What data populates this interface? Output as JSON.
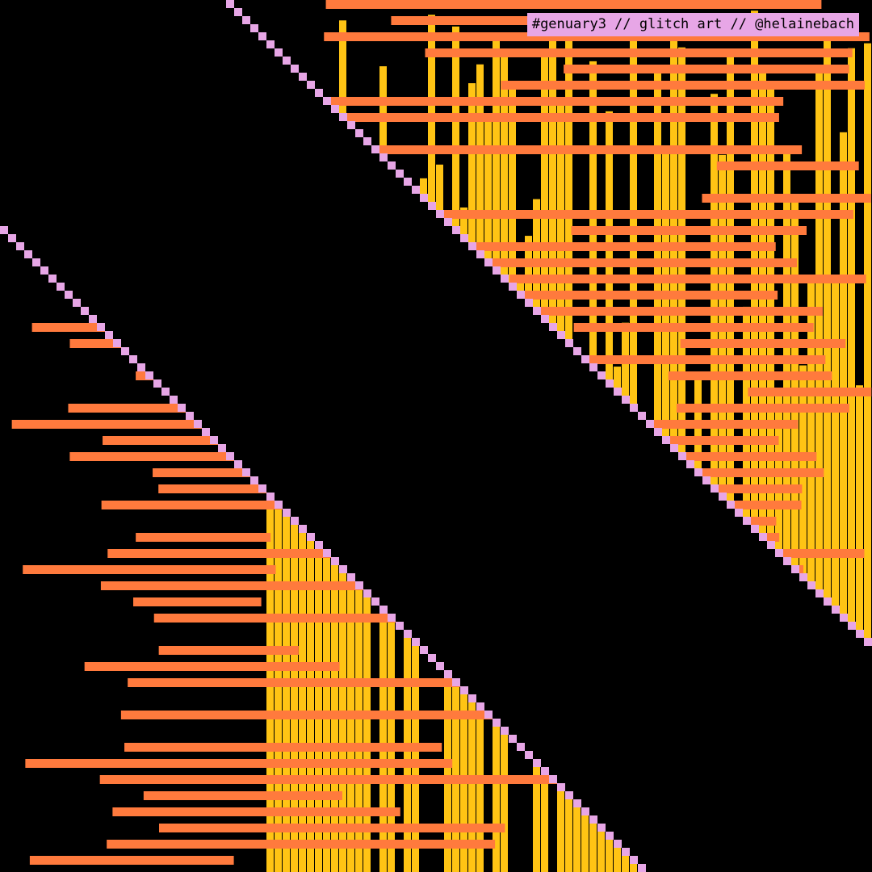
{
  "caption": "#genuary3 // glitch art // @helainebach",
  "colors": {
    "background": "#000000",
    "yellow_bars": "#ffc414",
    "orange_lines": "#ff7a3d",
    "pink_dots": "#e7a6e6",
    "caption_bg": "#e7a6e6"
  }
}
